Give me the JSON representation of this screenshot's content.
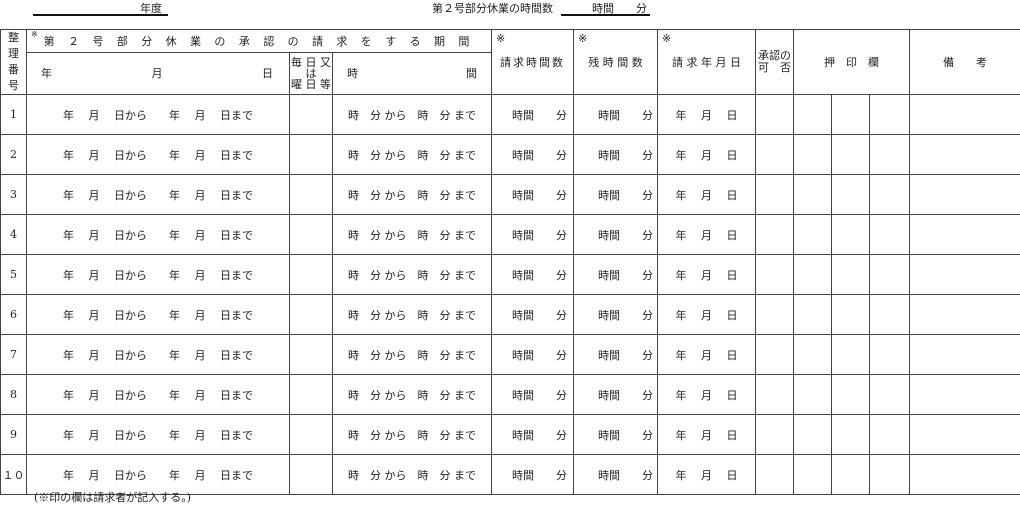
{
  "header": {
    "fiscal_year_label": "年度",
    "hours_label": "第２号部分休業の時間数",
    "hours_value": "時間　　分"
  },
  "table": {
    "col_number": "整 理\n番 号",
    "period_title": "第 ２ 号 部 分 休 業 の 承 認 の 請 求 を す る 期 間",
    "period_mark": "※",
    "sub_year": "年",
    "sub_month": "月",
    "sub_day": "日",
    "sub_weekday": "毎 日 又\nは\n曜 日 等",
    "sub_time_start": "時",
    "sub_time_end": "間",
    "mark": "※",
    "col_request_hours": "請求時間数",
    "col_remaining_hours": "残 時 間 数",
    "col_request_date": "請 求 年 月 日",
    "col_approval": "承認の\n可　否",
    "col_stamp": "押　印　欄",
    "col_remarks": "備　　考",
    "row_date_text": "年　 月　 日から　　年　 月　 日まで",
    "row_time_text": "時　分 から　時　分 まで",
    "row_hours_text": "時間　　分",
    "row_reqdate_text": "年　 月　 日",
    "rows": [
      "1",
      "2",
      "3",
      "4",
      "5",
      "6",
      "7",
      "8",
      "9",
      "１０"
    ]
  },
  "footer": {
    "note": "(※印の欄は請求者が記入する。)"
  }
}
